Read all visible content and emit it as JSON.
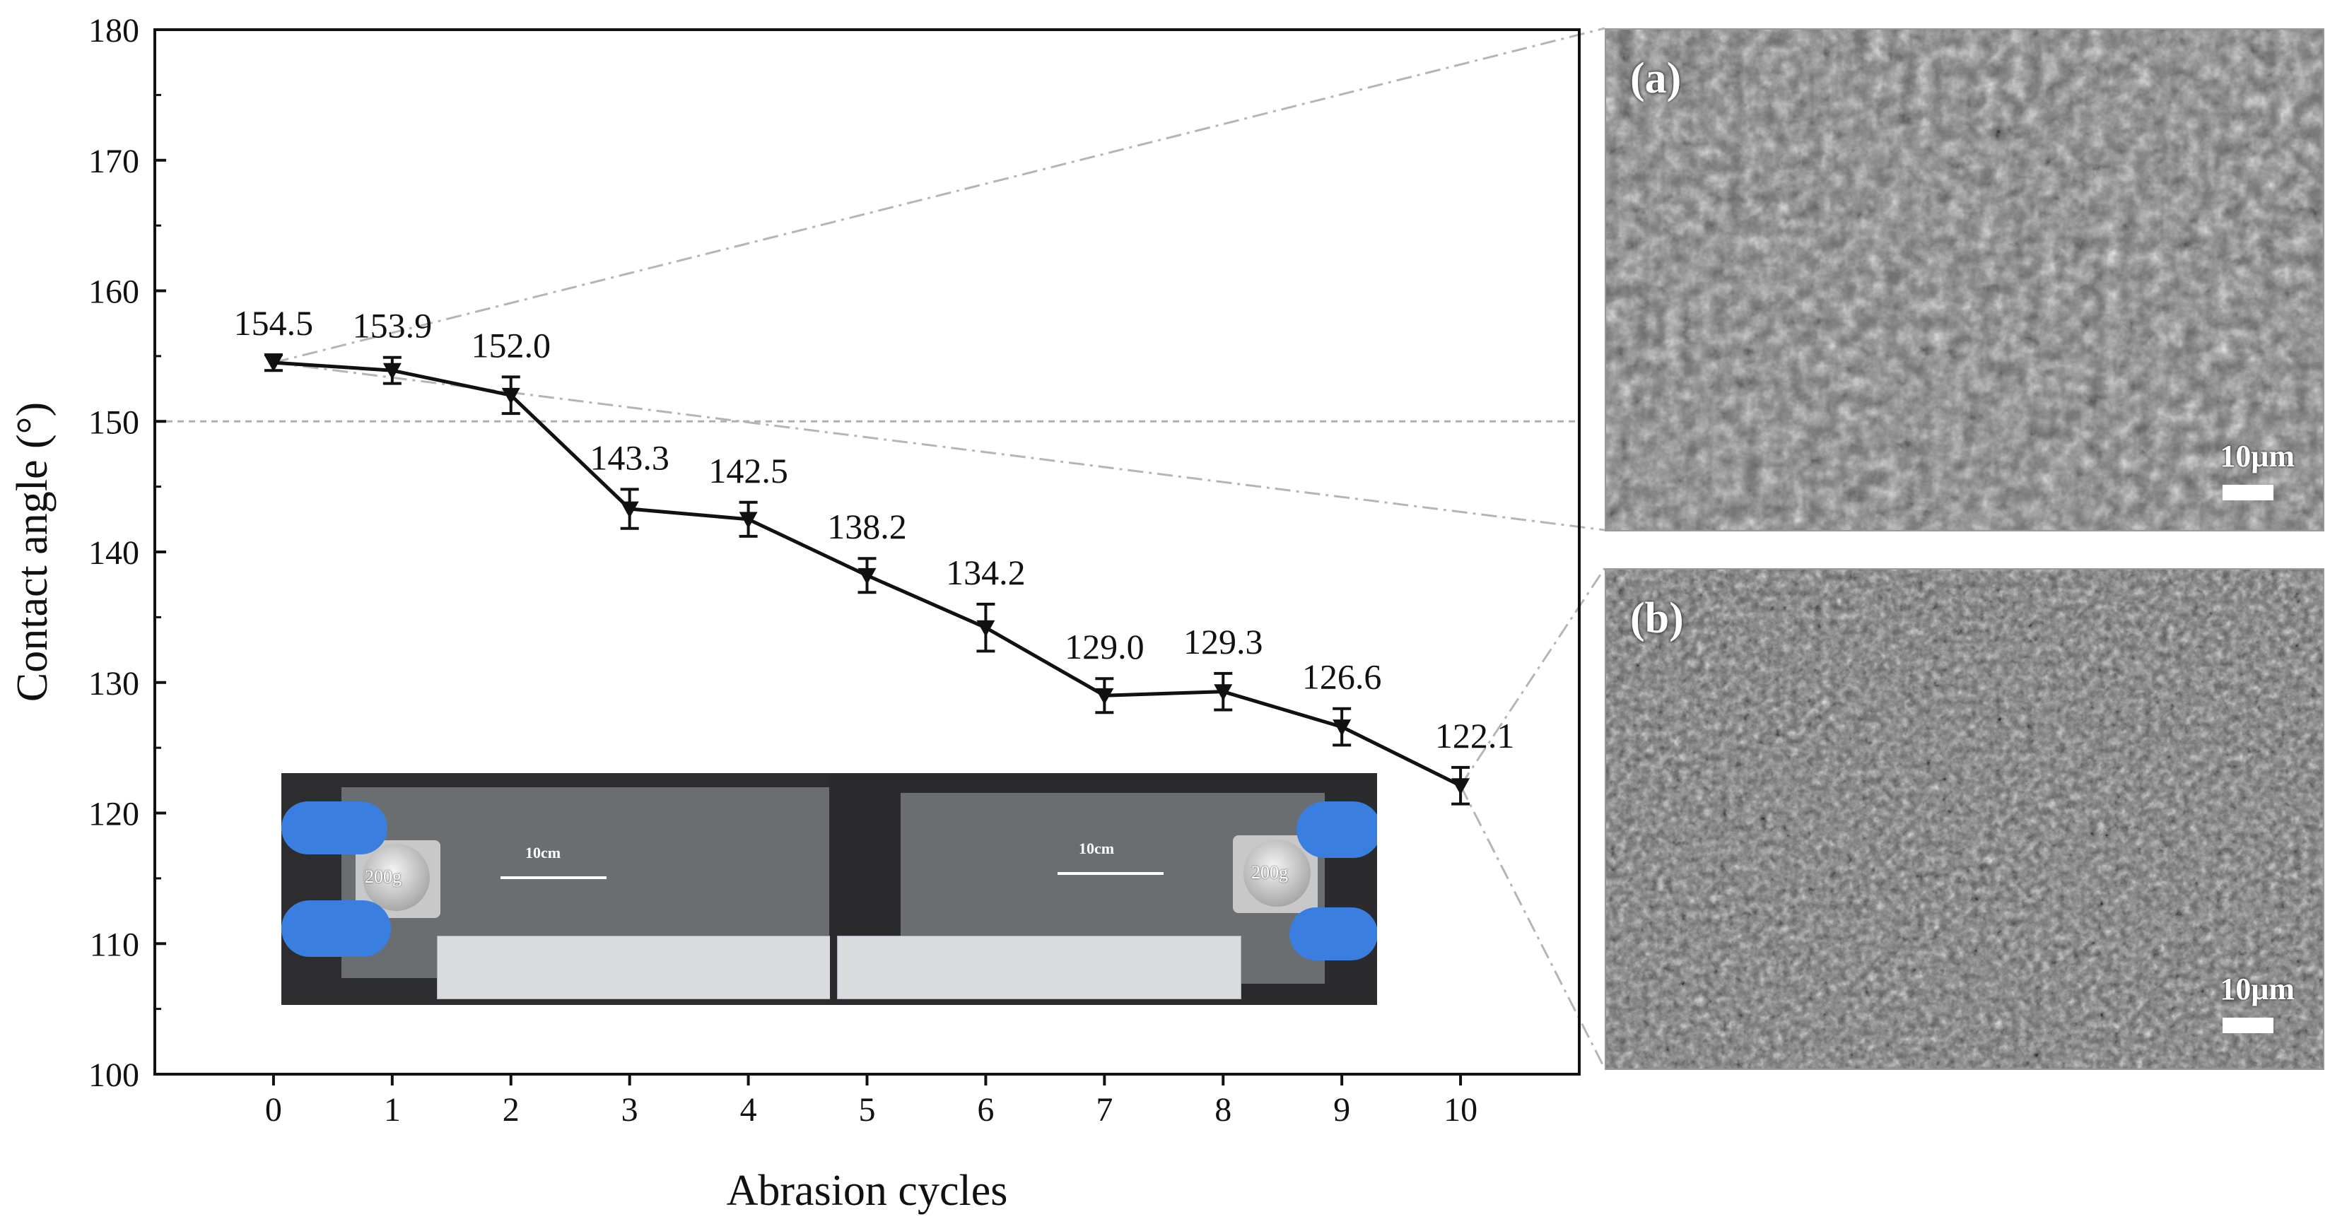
{
  "chart_data": {
    "type": "line",
    "xlabel": "Abrasion cycles",
    "ylabel": "Contact angle (°)",
    "x": [
      0,
      1,
      2,
      3,
      4,
      5,
      6,
      7,
      8,
      9,
      10
    ],
    "xticks": [
      "0",
      "1",
      "2",
      "3",
      "4",
      "5",
      "6",
      "7",
      "8",
      "9",
      "10"
    ],
    "yticks": [
      "100",
      "110",
      "120",
      "130",
      "140",
      "150",
      "160",
      "170",
      "180"
    ],
    "xlim": [
      -1,
      11
    ],
    "ylim": [
      100,
      180
    ],
    "series": [
      {
        "values": [
          154.5,
          153.9,
          152.0,
          143.3,
          142.5,
          138.2,
          134.2,
          129.0,
          129.3,
          126.6,
          122.1
        ],
        "errors": [
          0.6,
          1.0,
          1.4,
          1.5,
          1.3,
          1.3,
          1.8,
          1.3,
          1.4,
          1.4,
          1.4
        ],
        "labels": [
          "154.5",
          "153.9",
          "152.0",
          "143.3",
          "142.5",
          "138.2",
          "134.2",
          "129.0",
          "129.3",
          "126.6",
          "122.1"
        ],
        "marker": "triangle-down",
        "color": "#111111"
      }
    ],
    "reference_line": {
      "y": 150,
      "style": "dashed",
      "color": "#b0b0b0"
    },
    "grid": false
  },
  "panels": [
    {
      "label": "(a)",
      "scale_bar": "10μm"
    },
    {
      "label": "(b)",
      "scale_bar": "10μm"
    }
  ],
  "inset_photo": {
    "left": {
      "distance": "10cm",
      "weight": "200g"
    },
    "right": {
      "distance": "10cm",
      "weight": "200g"
    }
  },
  "colors": {
    "glove": "#3a7fe0",
    "line": "#111111",
    "guide": "#b0b0b0"
  }
}
